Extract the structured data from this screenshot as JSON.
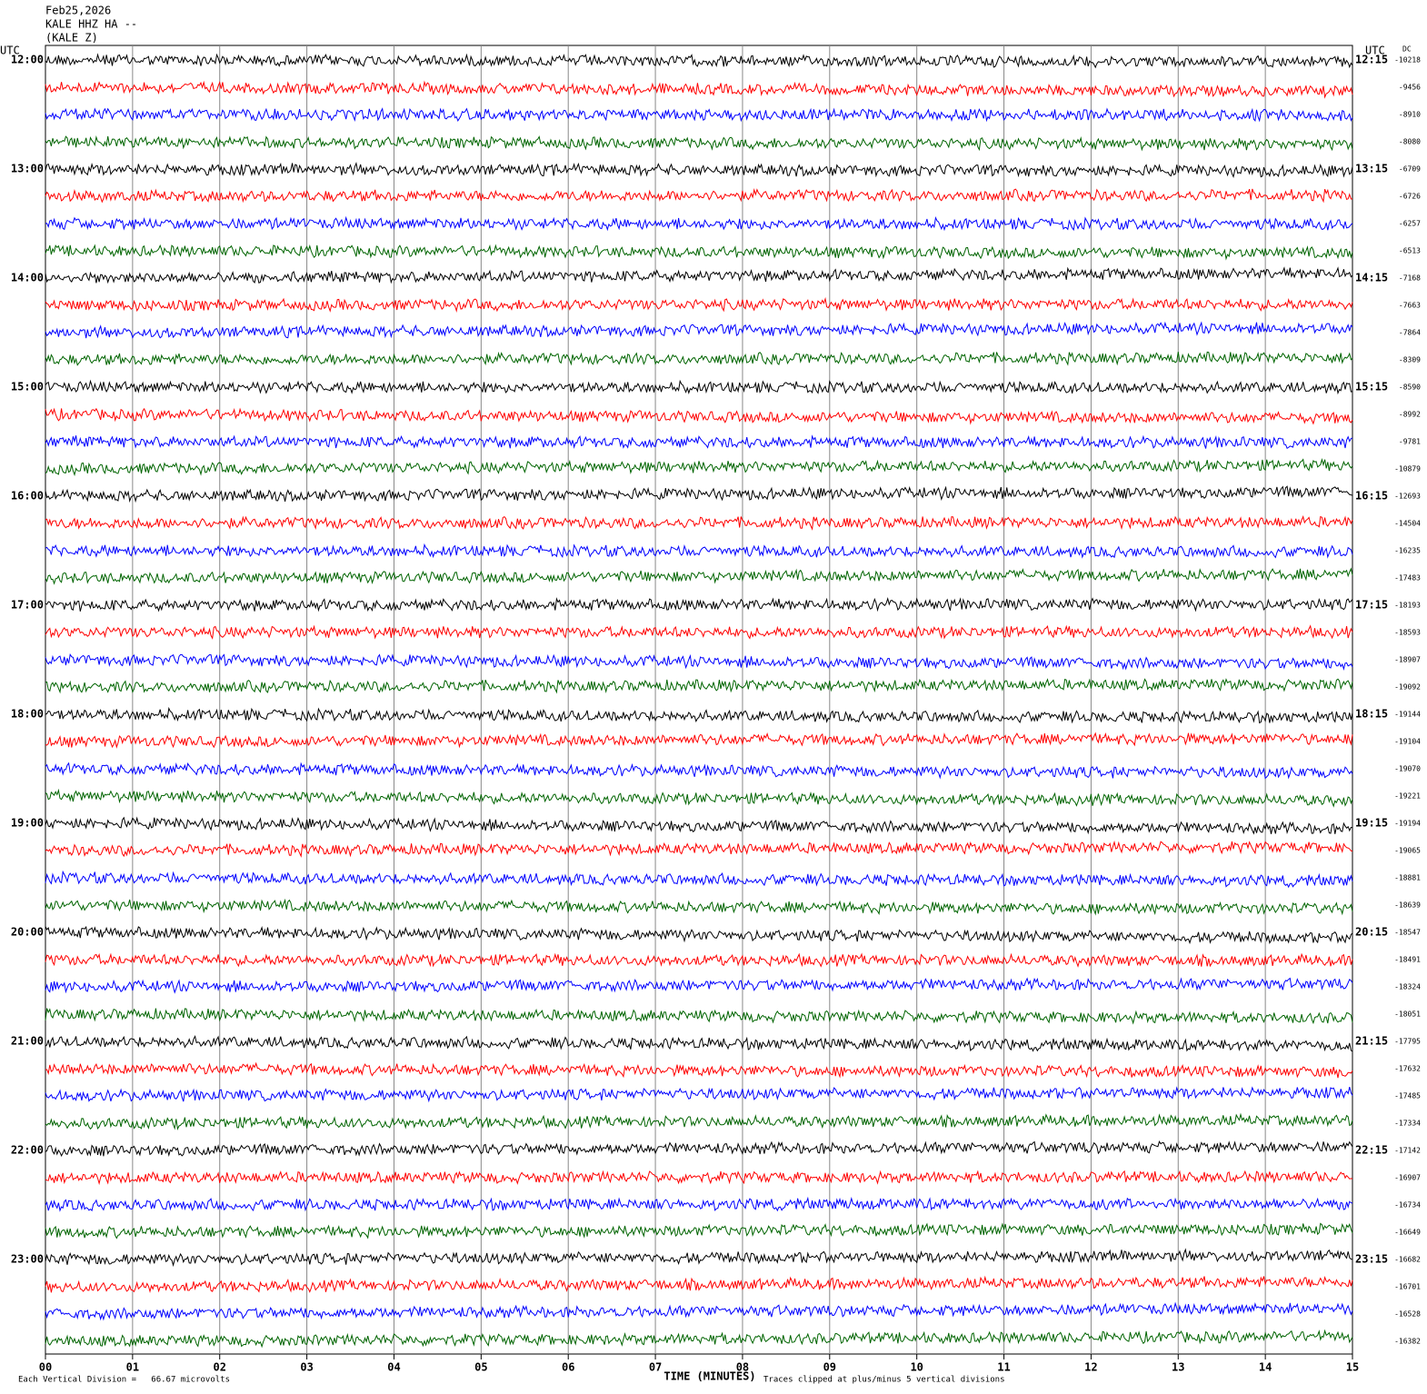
{
  "header": {
    "date": "Feb25,2026",
    "station": "KALE HHZ HA --",
    "channel": "(KALE Z)"
  },
  "left_axis": {
    "title": "UTC",
    "labels": [
      "12:00",
      "13:00",
      "14:00",
      "15:00",
      "16:00",
      "17:00",
      "18:00",
      "19:00",
      "20:00",
      "21:00",
      "22:00",
      "23:00"
    ]
  },
  "right_axis": {
    "title": "UTC",
    "labels": [
      "12:15",
      "13:15",
      "14:15",
      "15:15",
      "16:15",
      "17:15",
      "18:15",
      "19:15",
      "20:15",
      "21:15",
      "22:15",
      "23:15"
    ]
  },
  "dc": {
    "title": "DC",
    "values": [
      -10218,
      -9456,
      -8910,
      -8080,
      -6709,
      -6726,
      -6257,
      -6513,
      -7168,
      -7663,
      -7864,
      -8309,
      -8590,
      -8992,
      -9781,
      -10879,
      -12693,
      -14504,
      -16235,
      -17483,
      -18193,
      -18593,
      -18907,
      -19092,
      -19144,
      -19104,
      -19070,
      -19221,
      -19194,
      -19065,
      -18881,
      -18639,
      -18547,
      -18491,
      -18324,
      -18051,
      -17795,
      -17632,
      -17485,
      -17334,
      -17142,
      -16907,
      -16734,
      -16649,
      -16682,
      -16701,
      -16528,
      -16382
    ]
  },
  "x_axis": {
    "title": "TIME (MINUTES)",
    "labels": [
      "00",
      "01",
      "02",
      "03",
      "04",
      "05",
      "06",
      "07",
      "08",
      "09",
      "10",
      "11",
      "12",
      "13",
      "14",
      "15"
    ]
  },
  "footer": {
    "scale": "Each Vertical Division =   66.67 microvolts",
    "clip": "Traces clipped at plus/minus 5 vertical divisions"
  }
}
